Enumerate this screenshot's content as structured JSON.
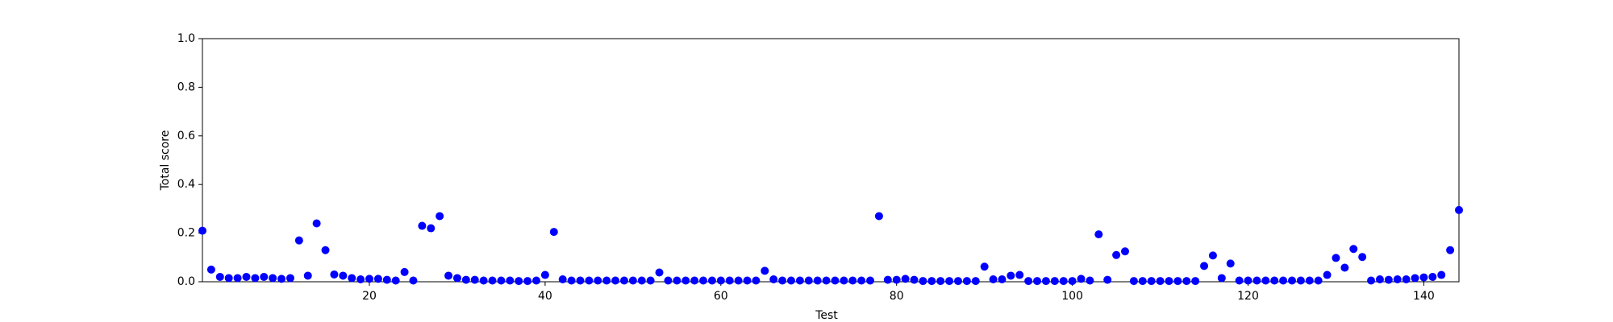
{
  "chart_data": {
    "type": "scatter",
    "x_label": "Test",
    "y_label": "Total score",
    "color": "#0000ff",
    "x": [
      1,
      2,
      3,
      4,
      5,
      6,
      7,
      8,
      9,
      10,
      11,
      12,
      13,
      14,
      15,
      16,
      17,
      18,
      19,
      20,
      21,
      22,
      23,
      24,
      25,
      26,
      27,
      28,
      29,
      30,
      31,
      32,
      33,
      34,
      35,
      36,
      37,
      38,
      39,
      40,
      41,
      42,
      43,
      44,
      45,
      46,
      47,
      48,
      49,
      50,
      51,
      52,
      53,
      54,
      55,
      56,
      57,
      58,
      59,
      60,
      61,
      62,
      63,
      64,
      65,
      66,
      67,
      68,
      69,
      70,
      71,
      72,
      73,
      74,
      75,
      76,
      77,
      78,
      79,
      80,
      81,
      82,
      83,
      84,
      85,
      86,
      87,
      88,
      89,
      90,
      91,
      92,
      93,
      94,
      95,
      96,
      97,
      98,
      99,
      100,
      101,
      102,
      103,
      104,
      105,
      106,
      107,
      108,
      109,
      110,
      111,
      112,
      113,
      114,
      115,
      116,
      117,
      118,
      119,
      120,
      121,
      122,
      123,
      124,
      125,
      126,
      127,
      128,
      129,
      130,
      131,
      132,
      133,
      134,
      135,
      136,
      137,
      138,
      139,
      140,
      141,
      142,
      143,
      144
    ],
    "values": [
      0.21,
      0.05,
      0.02,
      0.015,
      0.015,
      0.02,
      0.015,
      0.02,
      0.015,
      0.012,
      0.015,
      0.17,
      0.025,
      0.24,
      0.13,
      0.03,
      0.025,
      0.015,
      0.01,
      0.012,
      0.012,
      0.008,
      0.005,
      0.04,
      0.005,
      0.23,
      0.22,
      0.27,
      0.025,
      0.015,
      0.008,
      0.008,
      0.005,
      0.005,
      0.005,
      0.005,
      0.003,
      0.003,
      0.005,
      0.028,
      0.205,
      0.01,
      0.005,
      0.005,
      0.005,
      0.005,
      0.005,
      0.005,
      0.005,
      0.005,
      0.005,
      0.005,
      0.038,
      0.005,
      0.005,
      0.005,
      0.005,
      0.005,
      0.005,
      0.005,
      0.005,
      0.005,
      0.005,
      0.005,
      0.045,
      0.01,
      0.005,
      0.005,
      0.005,
      0.005,
      0.005,
      0.005,
      0.005,
      0.005,
      0.005,
      0.005,
      0.005,
      0.27,
      0.008,
      0.008,
      0.012,
      0.008,
      0.003,
      0.003,
      0.003,
      0.003,
      0.003,
      0.003,
      0.003,
      0.062,
      0.01,
      0.01,
      0.025,
      0.028,
      0.003,
      0.003,
      0.003,
      0.003,
      0.003,
      0.003,
      0.012,
      0.005,
      0.195,
      0.008,
      0.11,
      0.125,
      0.003,
      0.003,
      0.003,
      0.003,
      0.003,
      0.003,
      0.003,
      0.003,
      0.065,
      0.108,
      0.015,
      0.075,
      0.005,
      0.005,
      0.005,
      0.005,
      0.005,
      0.005,
      0.005,
      0.005,
      0.005,
      0.005,
      0.028,
      0.098,
      0.058,
      0.135,
      0.102,
      0.005,
      0.01,
      0.008,
      0.01,
      0.01,
      0.015,
      0.018,
      0.02,
      0.028,
      0.13,
      0.295
    ],
    "xlim": [
      1,
      144
    ],
    "xticks": [
      20,
      40,
      60,
      80,
      100,
      120,
      140
    ],
    "ylim": [
      0,
      1
    ],
    "yticks": [
      {
        "value": 0,
        "label": "0.0"
      },
      0.2,
      0.4,
      0.6,
      0.8,
      {
        "value": 1,
        "label": "1.0"
      }
    ]
  }
}
